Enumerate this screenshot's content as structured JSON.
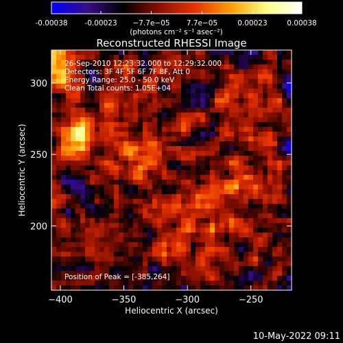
{
  "colorbar": {
    "tick_labels": [
      "-0.00038",
      "-0.00023",
      "−7.7e−05",
      "7.7e−05",
      "0.00023",
      "0.00038"
    ],
    "tick_values": [
      -0.00038,
      -0.00023,
      -7.7e-05,
      7.7e-05,
      0.00023,
      0.00038
    ],
    "range": [
      -0.00038,
      0.00038
    ],
    "unit_label": "(photons cm⁻² s⁻¹ asec⁻²)",
    "colormap": [
      "#0000ff",
      "#3a0d8a",
      "#000000",
      "#8a0f00",
      "#e83200",
      "#ff9a00",
      "#ffff80",
      "#ffffff"
    ]
  },
  "chart_data": {
    "type": "heatmap",
    "title": "Reconstructed RHESSI Image",
    "xlabel": "Heliocentric X (arcsec)",
    "ylabel": "Heliocentric Y (arcsec)",
    "xlim": [
      -407,
      -218
    ],
    "ylim": [
      155,
      323
    ],
    "x_ticks": [
      -400,
      -350,
      -300,
      -250
    ],
    "x_tick_labels": [
      "−400",
      "−350",
      "−300",
      "−250"
    ],
    "y_ticks": [
      200,
      250,
      300
    ],
    "y_tick_labels": [
      "200",
      "250",
      "300"
    ],
    "value_range": [
      -0.00038,
      0.00038
    ],
    "peak": {
      "x": -385,
      "y": 264
    },
    "annotations": {
      "time_range": "26-Sep-2010 12:23:32.000 to 12:29:32.000",
      "detectors": "Detectors: 3F 4F 5F 6F 7F 8F, Att 0",
      "energy": "Energy Range: 25.0 - 50.0 keV",
      "method": "Clean    Total counts: 1.05E+04",
      "peak_text": "Position of Peak = [-385,264]"
    }
  },
  "footer": {
    "timestamp": "10-May-2022 09:11"
  }
}
